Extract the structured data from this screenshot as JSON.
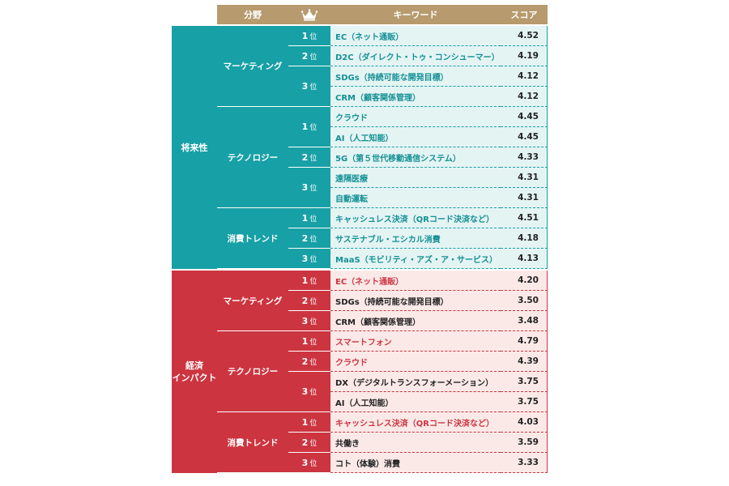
{
  "header": {
    "field": "分野",
    "rank_icon": "crown-icon",
    "keyword": "キーワード",
    "score": "スコア"
  },
  "colors": {
    "header": "#b79a6d",
    "teal": "#17a0a6",
    "red": "#cc3540",
    "teal_cell": "#e4f4f3",
    "red_cell": "#fbe9e8"
  },
  "sections": [
    {
      "label_lines": [
        "将来性"
      ],
      "fields": [
        {
          "name": "マーケティング",
          "ranks": [
            {
              "rank": "1",
              "unit": "位",
              "items": [
                {
                  "keyword": "EC（ネット通販）",
                  "score": "4.52"
                }
              ]
            },
            {
              "rank": "2",
              "unit": "位",
              "items": [
                {
                  "keyword": "D2C（ダイレクト・トゥ・コンシューマー）",
                  "score": "4.19"
                }
              ]
            },
            {
              "rank": "3",
              "unit": "位",
              "items": [
                {
                  "keyword": "SDGs（持続可能な開発目標）",
                  "score": "4.12"
                },
                {
                  "keyword": "CRM（顧客関係管理）",
                  "score": "4.12"
                }
              ]
            }
          ]
        },
        {
          "name": "テクノロジー",
          "ranks": [
            {
              "rank": "1",
              "unit": "位",
              "items": [
                {
                  "keyword": "クラウド",
                  "score": "4.45"
                },
                {
                  "keyword": "AI（人工知能）",
                  "score": "4.45"
                }
              ]
            },
            {
              "rank": "2",
              "unit": "位",
              "items": [
                {
                  "keyword": "5G（第５世代移動通信システム）",
                  "score": "4.33"
                }
              ]
            },
            {
              "rank": "3",
              "unit": "位",
              "items": [
                {
                  "keyword": "遠隔医療",
                  "score": "4.31"
                },
                {
                  "keyword": "自動運転",
                  "score": "4.31"
                }
              ]
            }
          ]
        },
        {
          "name": "消費トレンド",
          "ranks": [
            {
              "rank": "1",
              "unit": "位",
              "items": [
                {
                  "keyword": "キャッシュレス決済（QRコード決済など）",
                  "score": "4.51"
                }
              ]
            },
            {
              "rank": "2",
              "unit": "位",
              "items": [
                {
                  "keyword": "サステナブル・エシカル消費",
                  "score": "4.18"
                }
              ]
            },
            {
              "rank": "3",
              "unit": "位",
              "items": [
                {
                  "keyword": "MaaS（モビリティ・アズ・ア・サービス）",
                  "score": "4.13"
                }
              ]
            }
          ]
        }
      ]
    },
    {
      "label_lines": [
        "経済",
        "インパクト"
      ],
      "fields": [
        {
          "name": "マーケティング",
          "ranks": [
            {
              "rank": "1",
              "unit": "位",
              "items": [
                {
                  "keyword": "EC（ネット通販）",
                  "score": "4.20"
                }
              ]
            },
            {
              "rank": "2",
              "unit": "位",
              "items": [
                {
                  "keyword": "SDGs（持続可能な開発目標）",
                  "score": "3.50"
                }
              ]
            },
            {
              "rank": "3",
              "unit": "位",
              "items": [
                {
                  "keyword": "CRM（顧客関係管理）",
                  "score": "3.48"
                }
              ]
            }
          ]
        },
        {
          "name": "テクノロジー",
          "ranks": [
            {
              "rank": "1",
              "unit": "位",
              "items": [
                {
                  "keyword": "スマートフォン",
                  "score": "4.79"
                }
              ]
            },
            {
              "rank": "2",
              "unit": "位",
              "items": [
                {
                  "keyword": "クラウド",
                  "score": "4.39"
                }
              ]
            },
            {
              "rank": "3",
              "unit": "位",
              "items": [
                {
                  "keyword": "DX（デジタルトランスフォーメーション）",
                  "score": "3.75"
                },
                {
                  "keyword": "AI（人工知能）",
                  "score": "3.75"
                }
              ]
            }
          ]
        },
        {
          "name": "消費トレンド",
          "ranks": [
            {
              "rank": "1",
              "unit": "位",
              "items": [
                {
                  "keyword": "キャッシュレス決済（QRコード決済など）",
                  "score": "4.03"
                }
              ]
            },
            {
              "rank": "2",
              "unit": "位",
              "items": [
                {
                  "keyword": "共働き",
                  "score": "3.59"
                }
              ]
            },
            {
              "rank": "3",
              "unit": "位",
              "items": [
                {
                  "keyword": "コト（体験）消費",
                  "score": "3.33"
                }
              ]
            }
          ]
        }
      ]
    }
  ]
}
